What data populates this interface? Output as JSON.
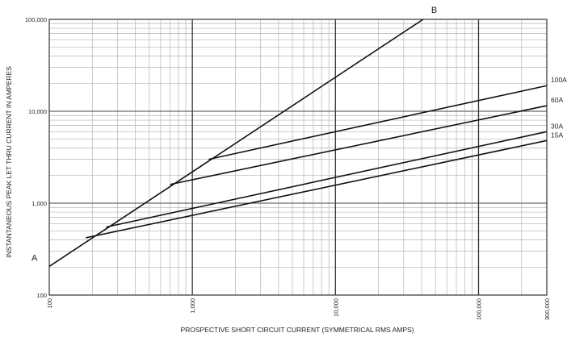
{
  "chart_data": {
    "type": "line",
    "xscale": "log",
    "yscale": "log",
    "xlim": [
      100,
      300000
    ],
    "ylim": [
      100,
      100000
    ],
    "grid": true,
    "xlabel": "PROSPECTIVE SHORT CIRCUIT CURRENT (SYMMETRICAL RMS AMPS)",
    "ylabel": "INSTANTANEOUS PEAK LET THRU CURRENT IN AMPERES",
    "xticks": [
      {
        "value": 100,
        "label": "100"
      },
      {
        "value": 1000,
        "label": "1,000"
      },
      {
        "value": 10000,
        "label": "10,000"
      },
      {
        "value": 100000,
        "label": "100,000"
      },
      {
        "value": 300000,
        "label": "300,000"
      }
    ],
    "yticks": [
      {
        "value": 100,
        "label": "100"
      },
      {
        "value": 1000,
        "label": "1,000"
      },
      {
        "value": 10000,
        "label": "10,000"
      },
      {
        "value": 100000,
        "label": "100,000"
      }
    ],
    "series": [
      {
        "name": "B",
        "x": [
          100,
          41000
        ],
        "y": [
          205,
          100000
        ]
      },
      {
        "name": "100A",
        "x": [
          1300,
          300000
        ],
        "y": [
          3000,
          19000
        ]
      },
      {
        "name": "60A",
        "x": [
          700,
          300000
        ],
        "y": [
          1600,
          11500
        ]
      },
      {
        "name": "30A",
        "x": [
          250,
          300000
        ],
        "y": [
          550,
          6000
        ]
      },
      {
        "name": "15A",
        "x": [
          180,
          300000
        ],
        "y": [
          420,
          4800
        ]
      }
    ],
    "annotations": [
      {
        "text": "A",
        "x": 100,
        "y": 205
      },
      {
        "text": "B",
        "x": 41000,
        "y": 100000
      }
    ]
  }
}
